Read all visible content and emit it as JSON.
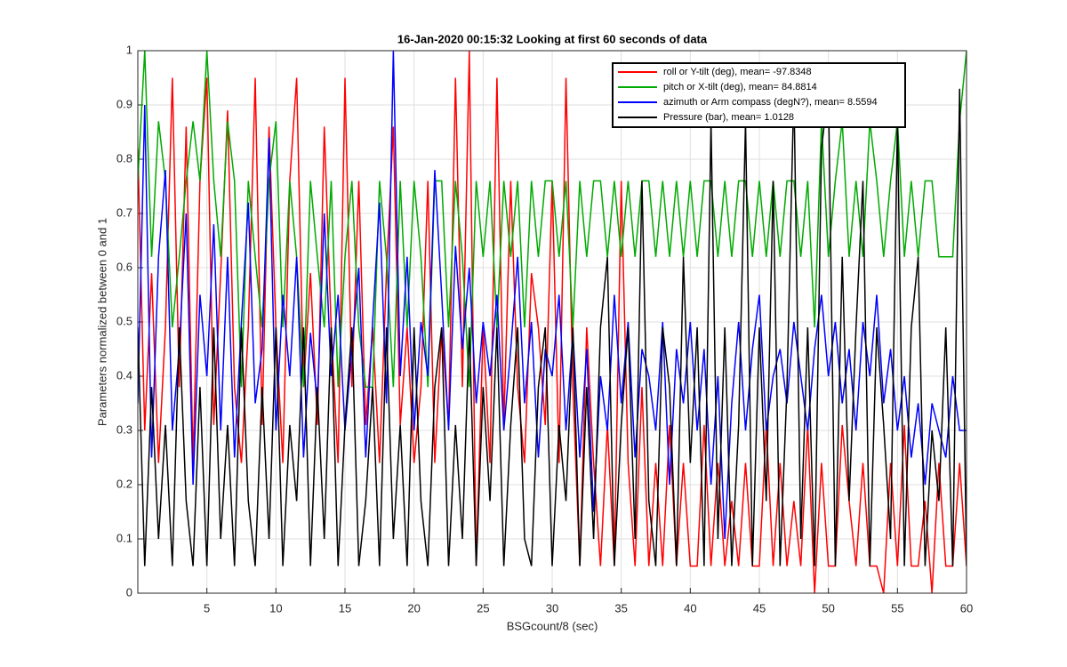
{
  "chart_data": {
    "type": "line",
    "title": "16-Jan-2020 00:15:32 Looking at first 60 seconds of data",
    "xlabel": "BSGcount/8 (sec)",
    "ylabel": "Parameters normalized between 0 and 1",
    "xlim": [
      0,
      60
    ],
    "ylim": [
      0,
      1
    ],
    "xticks": [
      5,
      10,
      15,
      20,
      25,
      30,
      35,
      40,
      45,
      50,
      55,
      60
    ],
    "yticks": [
      0,
      0.1,
      0.2,
      0.3,
      0.4,
      0.5,
      0.6,
      0.7,
      0.8,
      0.9,
      1
    ],
    "grid": true,
    "legend": "northeast",
    "x": [
      0,
      0.5,
      1,
      1.5,
      2,
      2.5,
      3,
      3.5,
      4,
      4.5,
      5,
      5.5,
      6,
      6.5,
      7,
      7.5,
      8,
      8.5,
      9,
      9.5,
      10,
      10.5,
      11,
      11.5,
      12,
      12.5,
      13,
      13.5,
      14,
      14.5,
      15,
      15.5,
      16,
      16.5,
      17,
      17.5,
      18,
      18.5,
      19,
      19.5,
      20,
      20.5,
      21,
      21.5,
      22,
      22.5,
      23,
      23.5,
      24,
      24.5,
      25,
      25.5,
      26,
      26.5,
      27,
      27.5,
      28,
      28.5,
      29,
      29.5,
      30,
      30.5,
      31,
      31.5,
      32,
      32.5,
      33,
      33.5,
      34,
      34.5,
      35,
      35.5,
      36,
      36.5,
      37,
      37.5,
      38,
      38.5,
      39,
      39.5,
      40,
      40.5,
      41,
      41.5,
      42,
      42.5,
      43,
      43.5,
      44,
      44.5,
      45,
      45.5,
      46,
      46.5,
      47,
      47.5,
      48,
      48.5,
      49,
      49.5,
      50,
      50.5,
      51,
      51.5,
      52,
      52.5,
      53,
      53.5,
      54,
      54.5,
      55,
      55.5,
      56,
      56.5,
      57,
      57.5,
      58,
      58.5,
      59,
      59.5,
      60
    ],
    "series": [
      {
        "name": "roll or Y-tilt (deg), mean= -97.8348",
        "color": "#ff0000",
        "values": [
          0.82,
          0.3,
          0.59,
          0.24,
          0.49,
          0.95,
          0.38,
          0.86,
          0.24,
          0.76,
          0.95,
          0.31,
          0.59,
          0.89,
          0.38,
          0.24,
          0.49,
          0.95,
          0.31,
          0.86,
          0.49,
          0.24,
          0.76,
          0.95,
          0.38,
          0.59,
          0.31,
          0.86,
          0.49,
          0.24,
          0.95,
          0.38,
          0.76,
          0.31,
          0.49,
          0.24,
          0.59,
          0.86,
          0.31,
          0.49,
          0.24,
          0.38,
          0.76,
          0.24,
          0.49,
          0.31,
          0.95,
          0.38,
          1.0,
          0.05,
          0.49,
          0.24,
          0.95,
          0.31,
          0.76,
          0.38,
          0.24,
          0.59,
          0.49,
          0.31,
          0.76,
          0.24,
          0.95,
          0.38,
          0.05,
          0.49,
          0.24,
          0.05,
          0.31,
          0.05,
          0.76,
          0.24,
          0.05,
          0.38,
          0.05,
          0.24,
          0.05,
          0.31,
          0.05,
          0.24,
          0.05,
          0.05,
          0.31,
          0.05,
          0.24,
          0.05,
          0.17,
          0.05,
          0.24,
          0.05,
          0.05,
          0.31,
          0.05,
          0.24,
          0.05,
          0.17,
          0.05,
          0.31,
          0.0,
          0.24,
          0.05,
          0.05,
          0.31,
          0.17,
          0.05,
          0.24,
          0.05,
          0.05,
          0.0,
          0.24,
          0.05,
          0.31,
          0.05,
          0.05,
          0.17,
          0.0,
          0.24,
          0.05,
          0.05,
          0.24,
          0.05
        ]
      },
      {
        "name": "pitch or X-tilt (deg), mean= 84.8814",
        "color": "#00aa00",
        "values": [
          0.76,
          1.0,
          0.62,
          0.87,
          0.76,
          0.49,
          0.62,
          0.76,
          0.87,
          0.76,
          1.0,
          0.76,
          0.62,
          0.87,
          0.76,
          0.38,
          0.76,
          0.62,
          0.49,
          0.76,
          0.87,
          0.49,
          0.76,
          0.62,
          0.38,
          0.76,
          0.62,
          0.49,
          0.76,
          0.38,
          0.62,
          0.76,
          0.49,
          0.38,
          0.38,
          0.76,
          0.62,
          0.38,
          0.76,
          0.49,
          0.76,
          0.62,
          0.38,
          0.76,
          0.76,
          0.49,
          0.76,
          0.62,
          0.38,
          0.76,
          0.62,
          0.76,
          0.49,
          0.76,
          0.62,
          0.76,
          0.49,
          0.76,
          0.62,
          0.76,
          0.76,
          0.62,
          0.76,
          0.49,
          0.76,
          0.62,
          0.76,
          0.76,
          0.62,
          0.76,
          0.62,
          0.76,
          0.62,
          0.76,
          0.76,
          0.62,
          0.76,
          0.62,
          0.76,
          0.62,
          0.76,
          0.62,
          0.76,
          0.76,
          0.62,
          0.76,
          0.62,
          0.76,
          0.76,
          0.62,
          0.76,
          0.62,
          0.76,
          0.62,
          0.76,
          0.76,
          0.62,
          0.76,
          0.49,
          0.87,
          0.62,
          0.76,
          0.87,
          0.62,
          0.76,
          0.62,
          0.87,
          0.76,
          0.62,
          0.76,
          0.87,
          0.62,
          0.76,
          0.62,
          0.76,
          0.76,
          0.62,
          0.62,
          0.62,
          0.87,
          1.0
        ]
      },
      {
        "name": "azimuth or Arm compass (degN?), mean= 8.5594",
        "color": "#0000ff",
        "values": [
          0.35,
          0.9,
          0.25,
          0.62,
          0.78,
          0.3,
          0.45,
          0.7,
          0.2,
          0.55,
          0.4,
          0.68,
          0.3,
          0.62,
          0.25,
          0.5,
          0.72,
          0.35,
          0.45,
          0.84,
          0.3,
          0.55,
          0.4,
          0.62,
          0.25,
          0.48,
          0.35,
          0.7,
          0.4,
          0.55,
          0.3,
          0.45,
          0.6,
          0.25,
          0.5,
          0.72,
          0.35,
          1.0,
          0.4,
          0.62,
          0.3,
          0.5,
          0.4,
          0.78,
          0.55,
          0.3,
          0.64,
          0.45,
          0.6,
          0.35,
          0.5,
          0.4,
          0.55,
          0.3,
          0.45,
          0.62,
          0.35,
          0.5,
          0.25,
          0.45,
          0.4,
          0.55,
          0.3,
          0.48,
          0.25,
          0.45,
          0.15,
          0.4,
          0.3,
          0.55,
          0.35,
          0.5,
          0.25,
          0.45,
          0.4,
          0.3,
          0.5,
          0.2,
          0.45,
          0.35,
          0.5,
          0.3,
          0.45,
          0.2,
          0.4,
          0.1,
          0.35,
          0.5,
          0.3,
          0.45,
          0.55,
          0.3,
          0.4,
          0.45,
          0.35,
          0.5,
          0.4,
          0.3,
          0.45,
          0.55,
          0.4,
          0.5,
          0.35,
          0.45,
          0.3,
          0.5,
          0.4,
          0.55,
          0.35,
          0.45,
          0.3,
          0.4,
          0.25,
          0.35,
          0.2,
          0.35,
          0.3,
          0.25,
          0.4,
          0.3,
          0.3
        ]
      },
      {
        "name": "Pressure (bar), mean= 1.0128",
        "color": "#000000",
        "values": [
          0.49,
          0.05,
          0.38,
          0.1,
          0.31,
          0.05,
          0.49,
          0.17,
          0.05,
          0.38,
          0.05,
          0.49,
          0.1,
          0.31,
          0.05,
          0.49,
          0.17,
          0.05,
          0.38,
          0.1,
          0.49,
          0.05,
          0.31,
          0.17,
          0.49,
          0.05,
          0.38,
          0.1,
          0.49,
          0.05,
          0.31,
          0.49,
          0.05,
          0.17,
          0.38,
          0.05,
          0.49,
          0.1,
          0.31,
          0.05,
          0.49,
          0.17,
          0.05,
          0.38,
          0.49,
          0.05,
          0.31,
          0.1,
          0.49,
          0.05,
          0.38,
          0.17,
          0.49,
          0.05,
          0.31,
          0.49,
          0.1,
          0.05,
          0.38,
          0.49,
          0.05,
          0.31,
          0.17,
          0.49,
          0.05,
          0.38,
          0.1,
          0.49,
          0.62,
          0.05,
          0.31,
          0.49,
          0.1,
          0.76,
          0.17,
          0.05,
          0.49,
          0.38,
          0.05,
          0.62,
          0.24,
          0.49,
          0.05,
          0.87,
          0.1,
          0.49,
          0.05,
          0.31,
          0.87,
          0.05,
          0.49,
          0.17,
          0.76,
          0.05,
          0.38,
          0.93,
          0.1,
          0.49,
          0.05,
          0.82,
          0.93,
          0.05,
          0.62,
          0.17,
          0.49,
          0.76,
          0.05,
          0.49,
          0.31,
          0.1,
          0.87,
          0.05,
          0.49,
          0.62,
          0.05,
          0.3,
          0.17,
          0.49,
          0.05,
          0.93,
          0.05
        ]
      }
    ]
  }
}
